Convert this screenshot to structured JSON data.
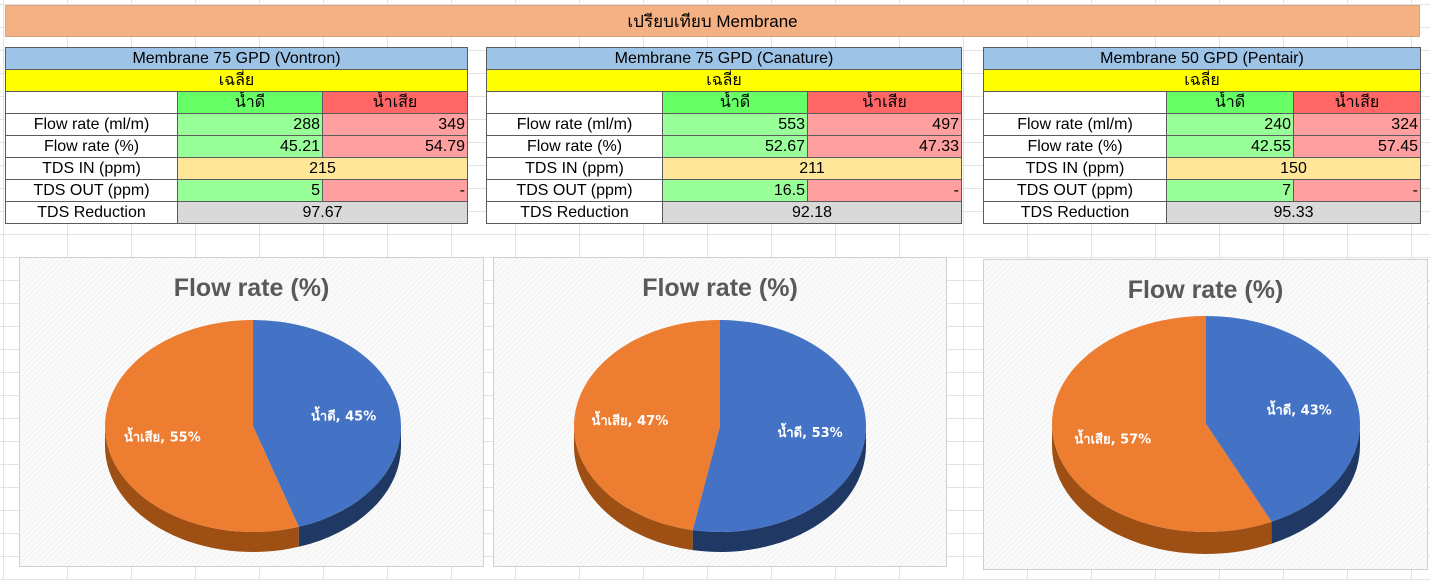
{
  "header": {
    "title": "เปรียบเทียบ Membrane"
  },
  "colors": {
    "good": "#4472c4",
    "bad": "#ed7d31",
    "good_side": "#1f3864",
    "bad_side": "#9e4f14"
  },
  "tables": [
    {
      "title": "Membrane 75 GPD (Vontron)",
      "avg_label": "เฉลี่ย",
      "good_label": "น้ำดี",
      "bad_label": "น้ำเสีย",
      "rows": {
        "flow_ml": {
          "label": "Flow rate (ml/m)",
          "good": "288",
          "bad": "349"
        },
        "flow_pct": {
          "label": "Flow rate (%)",
          "good": "45.21",
          "bad": "54.79"
        },
        "tds_in": {
          "label": "TDS IN (ppm)",
          "value": "215"
        },
        "tds_out": {
          "label": "TDS OUT (ppm)",
          "good": "5",
          "bad": "-"
        },
        "tds_red": {
          "label": "TDS Reduction",
          "value": "97.67"
        }
      }
    },
    {
      "title": "Membrane 75 GPD (Canature)",
      "avg_label": "เฉลี่ย",
      "good_label": "น้ำดี",
      "bad_label": "น้ำเสีย",
      "rows": {
        "flow_ml": {
          "label": "Flow rate (ml/m)",
          "good": "553",
          "bad": "497"
        },
        "flow_pct": {
          "label": "Flow rate (%)",
          "good": "52.67",
          "bad": "47.33"
        },
        "tds_in": {
          "label": "TDS IN (ppm)",
          "value": "211"
        },
        "tds_out": {
          "label": "TDS OUT (ppm)",
          "good": "16.5",
          "bad": "-"
        },
        "tds_red": {
          "label": "TDS Reduction",
          "value": "92.18"
        }
      }
    },
    {
      "title": "Membrane 50 GPD (Pentair)",
      "avg_label": "เฉลี่ย",
      "good_label": "น้ำดี",
      "bad_label": "น้ำเสีย",
      "rows": {
        "flow_ml": {
          "label": "Flow rate (ml/m)",
          "good": "240",
          "bad": "324"
        },
        "flow_pct": {
          "label": "Flow rate (%)",
          "good": "42.55",
          "bad": "57.45"
        },
        "tds_in": {
          "label": "TDS IN (ppm)",
          "value": "150"
        },
        "tds_out": {
          "label": "TDS OUT (ppm)",
          "good": "7",
          "bad": "-"
        },
        "tds_red": {
          "label": "TDS Reduction",
          "value": "95.33"
        }
      }
    }
  ],
  "chart_data": [
    {
      "type": "pie",
      "title": "Flow rate (%)",
      "slices": [
        {
          "label": "น้ำดี",
          "value": 45,
          "display": "น้ำดี, 45%",
          "color": "#4472c4"
        },
        {
          "label": "น้ำเสีย",
          "value": 55,
          "display": "น้ำเสีย, 55%",
          "color": "#ed7d31"
        }
      ]
    },
    {
      "type": "pie",
      "title": "Flow rate (%)",
      "slices": [
        {
          "label": "น้ำดี",
          "value": 53,
          "display": "น้ำดี, 53%",
          "color": "#4472c4"
        },
        {
          "label": "น้ำเสีย",
          "value": 47,
          "display": "น้ำเสีย, 47%",
          "color": "#ed7d31"
        }
      ]
    },
    {
      "type": "pie",
      "title": "Flow rate (%)",
      "slices": [
        {
          "label": "น้ำดี",
          "value": 43,
          "display": "น้ำดี, 43%",
          "color": "#4472c4"
        },
        {
          "label": "น้ำเสีย",
          "value": 57,
          "display": "น้ำเสีย, 57%",
          "color": "#ed7d31"
        }
      ]
    }
  ]
}
